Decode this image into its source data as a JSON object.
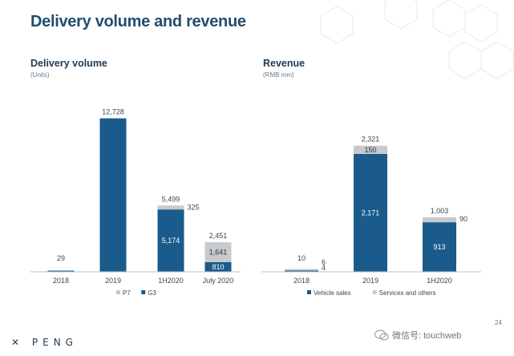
{
  "page_title": "Delivery volume and revenue",
  "page_number": "24",
  "logo_text": "PENG",
  "watermark_text": "微信号: touchweb",
  "colors": {
    "g3": "#1a5b8c",
    "p7": "#c8cacd",
    "title": "#1f4e6f"
  },
  "chart_data": [
    {
      "type": "bar",
      "stacked": true,
      "title": "Delivery volume",
      "subtitle": "(Units)",
      "categories": [
        "2018",
        "2019",
        "1H2020",
        "July 2020"
      ],
      "series": [
        {
          "name": "G3",
          "values": [
            29,
            12728,
            5174,
            810
          ]
        },
        {
          "name": "P7",
          "values": [
            0,
            0,
            325,
            1641
          ]
        }
      ],
      "totals": [
        29,
        12728,
        5499,
        2451
      ],
      "labels": {
        "totals": [
          "29",
          "12,728",
          "5,499",
          "2,451"
        ],
        "G3": [
          "",
          "",
          "5,174",
          "810"
        ],
        "P7": [
          "",
          "",
          "325",
          "1,641"
        ]
      },
      "legend": [
        "P7",
        "G3"
      ],
      "legend_position": "bottom",
      "ylim": [
        0,
        13500
      ],
      "grid": false
    },
    {
      "type": "bar",
      "stacked": true,
      "title": "Revenue",
      "subtitle": "(RMB mm)",
      "categories": [
        "2018",
        "2019",
        "1H2020"
      ],
      "series": [
        {
          "name": "Vehicle sales",
          "values": [
            4,
            2171,
            913
          ]
        },
        {
          "name": "Services and others",
          "values": [
            6,
            150,
            90
          ]
        }
      ],
      "totals": [
        10,
        2321,
        1003
      ],
      "labels": {
        "totals": [
          "10",
          "2,321",
          "1,003"
        ],
        "Vehicle sales": [
          "4",
          "2,171",
          "913"
        ],
        "Services and others": [
          "6",
          "150",
          "90"
        ]
      },
      "legend": [
        "Vehicle sales",
        "Services and others"
      ],
      "legend_position": "bottom",
      "ylim": [
        0,
        2450
      ],
      "grid": false
    }
  ]
}
